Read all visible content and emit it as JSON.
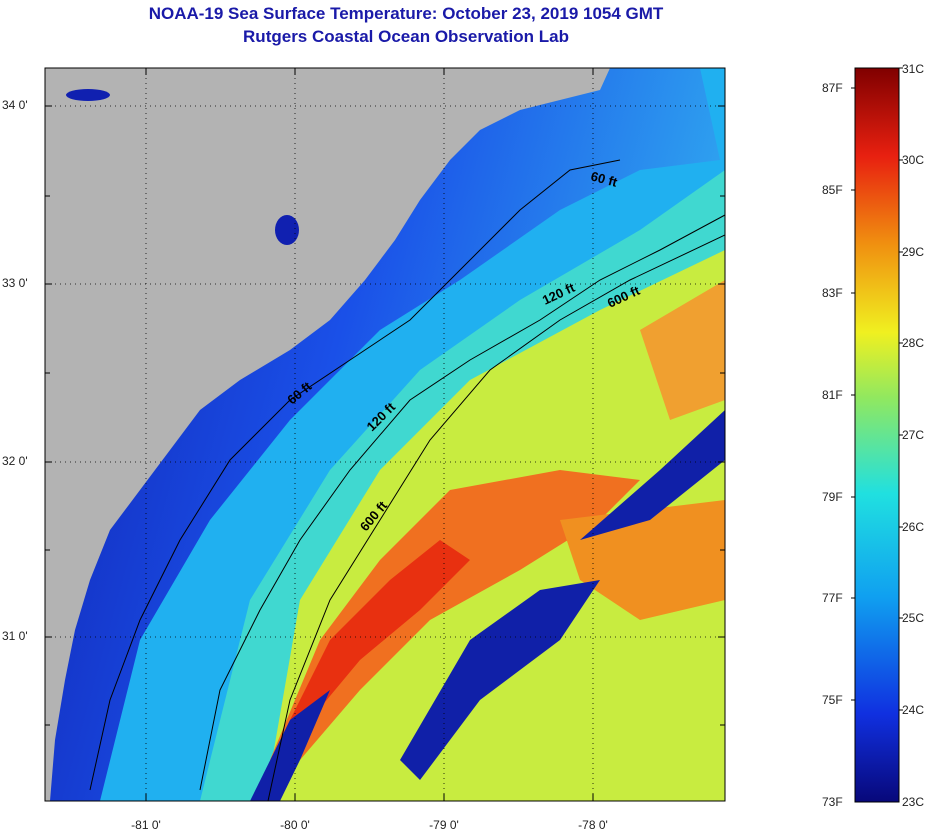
{
  "title": {
    "line1": "NOAA-19 Sea Surface Temperature:  October 23, 2019 1054 GMT",
    "line2": "Rutgers Coastal Ocean Observation Lab"
  },
  "map": {
    "lat_ticks": [
      "34 0'",
      "33 0'",
      "32 0'",
      "31 0'"
    ],
    "lon_ticks": [
      "-81 0'",
      "-80 0'",
      "-79 0'",
      "-78 0'"
    ],
    "isobath_labels": [
      "60 ft",
      "60 ft",
      "120 ft",
      "120 ft",
      "600 ft",
      "600 ft"
    ],
    "colors": {
      "land": "#b3b3b3",
      "title": "#1a1aa8",
      "sst_cold": "#1020a0",
      "sst_warm": "#e83010"
    }
  },
  "colorbar": {
    "fahrenheit_ticks": [
      "87F",
      "85F",
      "83F",
      "81F",
      "79F",
      "77F",
      "75F",
      "73F"
    ],
    "celsius_ticks": [
      "31C",
      "30C",
      "29C",
      "28C",
      "27C",
      "26C",
      "25C",
      "24C",
      "23C"
    ],
    "range_c": [
      23,
      31
    ],
    "range_f": [
      73,
      87
    ]
  }
}
